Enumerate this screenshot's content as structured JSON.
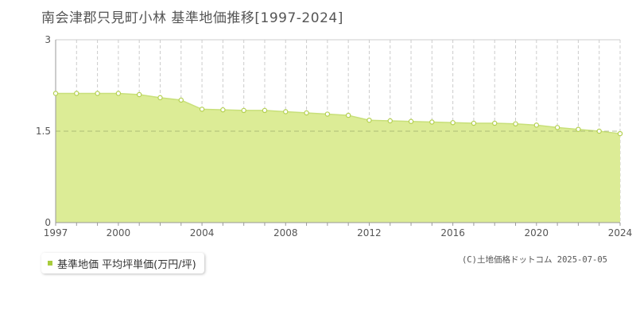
{
  "title": "南会津郡只見町小林 基準地価推移[1997-2024]",
  "legend": {
    "label": "基準地価 平均坪単価(万円/坪)"
  },
  "credit": "(C)土地価格ドットコム 2025-07-05",
  "colors": {
    "area_fill": "#dcec96",
    "line": "#c8e07a",
    "marker_stroke": "#b4d050",
    "marker_fill": "#ffffff",
    "legend_swatch": "#a8cc3c",
    "grid": "#cccccc",
    "axis": "#999999"
  },
  "chart_data": {
    "type": "area",
    "title": "南会津郡只見町小林 基準地価推移[1997-2024]",
    "xlabel": "",
    "ylabel": "",
    "xlim": [
      1997,
      2024
    ],
    "ylim": [
      0,
      3
    ],
    "y_ticks": [
      0,
      1.5,
      3
    ],
    "y_tick_labels": [
      "0",
      "1.5",
      "3"
    ],
    "x_ticks": [
      1997,
      2000,
      2004,
      2008,
      2012,
      2016,
      2020,
      2024
    ],
    "vertical_grid_dashed": true,
    "reference_line": 1.5,
    "series": [
      {
        "name": "基準地価 平均坪単価(万円/坪)",
        "x": [
          1997,
          1998,
          1999,
          2000,
          2001,
          2002,
          2003,
          2004,
          2005,
          2006,
          2007,
          2008,
          2009,
          2010,
          2011,
          2012,
          2013,
          2014,
          2015,
          2016,
          2017,
          2018,
          2019,
          2020,
          2021,
          2022,
          2023,
          2024
        ],
        "values": [
          2.12,
          2.12,
          2.12,
          2.12,
          2.1,
          2.05,
          2.01,
          1.86,
          1.85,
          1.84,
          1.84,
          1.82,
          1.8,
          1.78,
          1.76,
          1.68,
          1.67,
          1.66,
          1.65,
          1.64,
          1.63,
          1.63,
          1.62,
          1.6,
          1.56,
          1.53,
          1.5,
          1.46
        ]
      }
    ]
  }
}
